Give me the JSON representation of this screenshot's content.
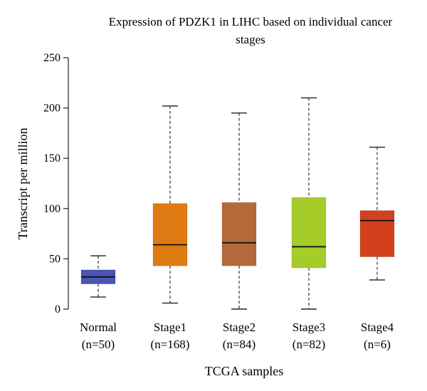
{
  "chart_data": {
    "type": "boxplot",
    "title_lines": [
      "Expression of PDZK1 in LIHC based on individual cancer",
      "stages"
    ],
    "xlabel": "TCGA samples",
    "ylabel": "Transcript per million",
    "ylim": [
      0,
      250
    ],
    "yticks": [
      0,
      50,
      100,
      150,
      200,
      250
    ],
    "grid": false,
    "legend": "none",
    "groups": [
      {
        "name": "Normal",
        "count_label": "(n=50)",
        "color": "#4b55b3",
        "min": 12,
        "q1": 25,
        "median": 32,
        "q3": 39,
        "max": 53
      },
      {
        "name": "Stage1",
        "count_label": "(n=168)",
        "color": "#e07a12",
        "min": 6,
        "q1": 43,
        "median": 64,
        "q3": 105,
        "max": 202
      },
      {
        "name": "Stage2",
        "count_label": "(n=84)",
        "color": "#b5693a",
        "min": 0,
        "q1": 43,
        "median": 66,
        "q3": 106,
        "max": 195
      },
      {
        "name": "Stage3",
        "count_label": "(n=82)",
        "color": "#a6cc2a",
        "min": 0,
        "q1": 41,
        "median": 62,
        "q3": 111,
        "max": 210
      },
      {
        "name": "Stage4",
        "count_label": "(n=6)",
        "color": "#d5401c",
        "min": 29,
        "q1": 52,
        "median": 88,
        "q3": 98,
        "max": 161
      }
    ]
  }
}
